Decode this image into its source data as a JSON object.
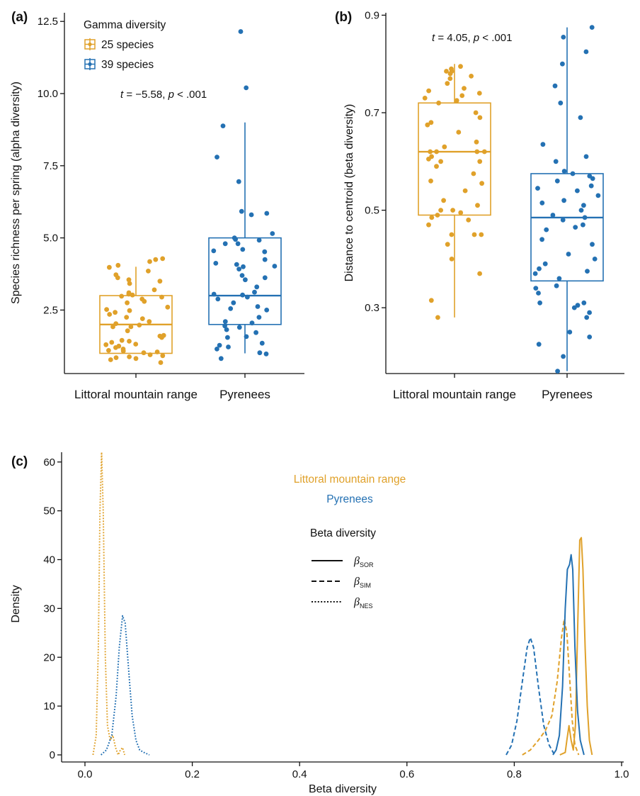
{
  "colors": {
    "littoral": "#e0a12a",
    "pyrenees": "#2471b3",
    "axis": "#111111"
  },
  "panel_a": {
    "panel_label": "(a)",
    "legend_title": "Gamma diversity",
    "legend_items": [
      "25 species",
      "39 species"
    ],
    "stat_t": "t",
    "stat_rest": " = −5.58, ",
    "stat_p": "p",
    "stat_tail": " < .001"
  },
  "panel_b": {
    "panel_label": "(b)",
    "stat_t": "t",
    "stat_rest": " = 4.05, ",
    "stat_p": "p",
    "stat_tail": " < .001"
  },
  "panel_c": {
    "panel_label": "(c)",
    "legend_series": [
      "Littoral mountain range",
      "Pyrenees"
    ],
    "legend_title": "Beta diversity",
    "line_legend": [
      {
        "symbol": "β",
        "sub": "SOR",
        "dash": "solid"
      },
      {
        "symbol": "β",
        "sub": "SIM",
        "dash": "dashed"
      },
      {
        "symbol": "β",
        "sub": "NES",
        "dash": "dotted"
      }
    ]
  },
  "chart_data": [
    {
      "type": "box",
      "id": "a",
      "categories": [
        "Littoral mountain range",
        "Pyrenees"
      ],
      "ylabel": "Species richness per spring (alpha diversity)",
      "xlabel": "",
      "ylim": [
        0.3,
        12.8
      ],
      "yticks": [
        2.5,
        5.0,
        7.5,
        10.0,
        12.5
      ],
      "ytick_labels": [
        "2.5",
        "5.0",
        "7.5",
        "10.0",
        "12.5"
      ],
      "boxes": [
        {
          "category": "Littoral mountain range",
          "min": 1,
          "q1": 1,
          "median": 2,
          "q3": 3,
          "max": 4
        },
        {
          "category": "Pyrenees",
          "min": 1,
          "q1": 2,
          "median": 3,
          "q3": 5,
          "max": 9
        }
      ],
      "points": [
        [
          0.68,
          0.92,
          1.1,
          1.42,
          1.55,
          1.92,
          1.78,
          0.82,
          1.02,
          1.25,
          1.38,
          1.62,
          0.88,
          1.2,
          1.32,
          1.45,
          0.78,
          0.95,
          1.08,
          1.15,
          1.3,
          1.6,
          0.85,
          1.05,
          1.92,
          2.03,
          1.98,
          2.25,
          2.1,
          2.2,
          2.35,
          2.42,
          2.48,
          2.52,
          2.6,
          2.75,
          2.8,
          2.88,
          2.95,
          2.98,
          3.05,
          3.02,
          3.1,
          3.2,
          3.42,
          3.55,
          3.62,
          3.72,
          3.85,
          3.98,
          4.05,
          4.18,
          4.25,
          4.28,
          3.5
        ],
        [
          0.82,
          0.98,
          1.02,
          1.15,
          1.22,
          1.28,
          1.35,
          1.55,
          1.58,
          1.72,
          1.82,
          1.9,
          1.95,
          2.05,
          2.1,
          2.25,
          2.5,
          2.55,
          2.62,
          2.75,
          2.88,
          2.95,
          3.02,
          3.05,
          3.12,
          3.3,
          3.55,
          3.7,
          3.92,
          4.02,
          4.08,
          4.12,
          4.25,
          4.52,
          4.55,
          4.6,
          4.8,
          4.92,
          5.0,
          5.15,
          5.8,
          5.85,
          5.92,
          7.8,
          6.95,
          8.88,
          10.2,
          12.15,
          4.0,
          4.8,
          4.95,
          3.62
        ]
      ]
    },
    {
      "type": "box",
      "id": "b",
      "categories": [
        "Littoral mountain range",
        "Pyrenees"
      ],
      "ylabel": "Distance to centroid (beta diversity)",
      "xlabel": "",
      "ylim": [
        0.165,
        0.905
      ],
      "yticks": [
        0.3,
        0.5,
        0.7,
        0.9
      ],
      "ytick_labels": [
        "0.3",
        "0.5",
        "0.7",
        "0.9"
      ],
      "boxes": [
        {
          "category": "Littoral mountain range",
          "min": 0.28,
          "q1": 0.49,
          "median": 0.62,
          "q3": 0.72,
          "max": 0.8
        },
        {
          "category": "Pyrenees",
          "min": 0.17,
          "q1": 0.355,
          "median": 0.485,
          "q3": 0.575,
          "max": 0.875
        }
      ],
      "points": [
        [
          0.28,
          0.315,
          0.37,
          0.4,
          0.43,
          0.45,
          0.45,
          0.45,
          0.47,
          0.48,
          0.485,
          0.49,
          0.495,
          0.5,
          0.5,
          0.51,
          0.52,
          0.54,
          0.555,
          0.56,
          0.575,
          0.59,
          0.6,
          0.605,
          0.61,
          0.62,
          0.62,
          0.62,
          0.63,
          0.64,
          0.66,
          0.675,
          0.68,
          0.69,
          0.7,
          0.72,
          0.725,
          0.73,
          0.735,
          0.74,
          0.745,
          0.75,
          0.76,
          0.77,
          0.775,
          0.78,
          0.785,
          0.785,
          0.79,
          0.795,
          0.6,
          0.62
        ],
        [
          0.17,
          0.2,
          0.225,
          0.24,
          0.25,
          0.28,
          0.29,
          0.3,
          0.305,
          0.31,
          0.31,
          0.33,
          0.34,
          0.345,
          0.36,
          0.37,
          0.375,
          0.38,
          0.39,
          0.4,
          0.41,
          0.43,
          0.44,
          0.46,
          0.465,
          0.47,
          0.48,
          0.485,
          0.49,
          0.5,
          0.51,
          0.515,
          0.52,
          0.53,
          0.54,
          0.545,
          0.55,
          0.56,
          0.565,
          0.57,
          0.575,
          0.58,
          0.6,
          0.61,
          0.635,
          0.69,
          0.72,
          0.755,
          0.8,
          0.825,
          0.855,
          0.875
        ]
      ]
    },
    {
      "type": "line",
      "id": "c",
      "title": "",
      "xlabel": "Beta diversity",
      "ylabel": "Density",
      "xlim": [
        -0.03,
        1.0
      ],
      "ylim": [
        0,
        62
      ],
      "xticks": [
        0.0,
        0.2,
        0.4,
        0.6,
        0.8,
        1.0
      ],
      "xtick_labels": [
        "0.0",
        "0.2",
        "0.4",
        "0.6",
        "0.8",
        "1.0"
      ],
      "yticks": [
        0,
        10,
        20,
        30,
        40,
        50,
        60
      ],
      "ytick_labels": [
        "0",
        "10",
        "20",
        "30",
        "40",
        "50",
        "60"
      ],
      "legend": "top-center",
      "series": [
        {
          "name": "Littoral mountain range",
          "metric": "SOR",
          "dash": "solid",
          "points": [
            [
              0.885,
              0
            ],
            [
              0.895,
              0.5
            ],
            [
              0.898,
              3
            ],
            [
              0.902,
              6
            ],
            [
              0.906,
              3
            ],
            [
              0.91,
              1
            ],
            [
              0.914,
              6
            ],
            [
              0.918,
              25
            ],
            [
              0.922,
              44
            ],
            [
              0.925,
              44.5
            ],
            [
              0.928,
              38
            ],
            [
              0.932,
              22
            ],
            [
              0.936,
              10
            ],
            [
              0.94,
              3
            ],
            [
              0.945,
              0
            ]
          ]
        },
        {
          "name": "Littoral mountain range",
          "metric": "SIM",
          "dash": "dashed",
          "points": [
            [
              0.815,
              0
            ],
            [
              0.83,
              1
            ],
            [
              0.845,
              3
            ],
            [
              0.858,
              5
            ],
            [
              0.87,
              8
            ],
            [
              0.88,
              15
            ],
            [
              0.888,
              24
            ],
            [
              0.893,
              27.8
            ],
            [
              0.898,
              25
            ],
            [
              0.903,
              16
            ],
            [
              0.908,
              7
            ],
            [
              0.913,
              2
            ],
            [
              0.92,
              0
            ]
          ]
        },
        {
          "name": "Littoral mountain range",
          "metric": "NES",
          "dash": "dotted",
          "points": [
            [
              0.015,
              0
            ],
            [
              0.021,
              4
            ],
            [
              0.025,
              22
            ],
            [
              0.028,
              50
            ],
            [
              0.031,
              62
            ],
            [
              0.034,
              50
            ],
            [
              0.038,
              20
            ],
            [
              0.042,
              6
            ],
            [
              0.047,
              3
            ],
            [
              0.052,
              4
            ],
            [
              0.057,
              1.5
            ],
            [
              0.062,
              0
            ],
            [
              0.066,
              1
            ],
            [
              0.07,
              1.5
            ],
            [
              0.074,
              0
            ]
          ]
        },
        {
          "name": "Pyrenees",
          "metric": "SOR",
          "dash": "solid",
          "points": [
            [
              0.872,
              0
            ],
            [
              0.878,
              1
            ],
            [
              0.884,
              4
            ],
            [
              0.89,
              14
            ],
            [
              0.895,
              30
            ],
            [
              0.899,
              38
            ],
            [
              0.903,
              39
            ],
            [
              0.906,
              41
            ],
            [
              0.909,
              38
            ],
            [
              0.913,
              22
            ],
            [
              0.918,
              9
            ],
            [
              0.923,
              3
            ],
            [
              0.93,
              0
            ]
          ]
        },
        {
          "name": "Pyrenees",
          "metric": "SIM",
          "dash": "dashed",
          "points": [
            [
              0.785,
              0
            ],
            [
              0.795,
              2
            ],
            [
              0.805,
              7
            ],
            [
              0.815,
              15
            ],
            [
              0.824,
              22
            ],
            [
              0.83,
              24
            ],
            [
              0.836,
              22
            ],
            [
              0.845,
              14
            ],
            [
              0.855,
              6
            ],
            [
              0.865,
              2
            ],
            [
              0.875,
              0
            ]
          ]
        },
        {
          "name": "Pyrenees",
          "metric": "NES",
          "dash": "dotted",
          "points": [
            [
              0.03,
              0
            ],
            [
              0.04,
              1
            ],
            [
              0.05,
              4
            ],
            [
              0.058,
              12
            ],
            [
              0.064,
              22
            ],
            [
              0.07,
              28.5
            ],
            [
              0.075,
              27
            ],
            [
              0.081,
              18
            ],
            [
              0.088,
              8
            ],
            [
              0.095,
              3
            ],
            [
              0.102,
              1
            ],
            [
              0.11,
              0.5
            ],
            [
              0.12,
              0
            ]
          ]
        }
      ]
    }
  ]
}
